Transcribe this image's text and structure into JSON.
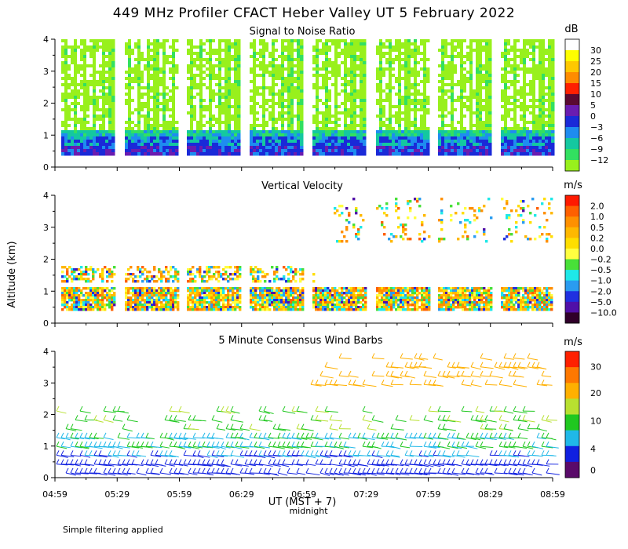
{
  "title": "449 MHz Profiler CFACT Heber Valley UT  5 February 2022",
  "ylabel": "Altitude (km)",
  "xlabel": "UT (MST + 7)",
  "midnight_label": "midnight",
  "footnote": "Simple filtering applied",
  "x_ticks": [
    "04:59",
    "05:29",
    "05:59",
    "06:29",
    "06:59",
    "07:29",
    "07:59",
    "08:29",
    "08:59"
  ],
  "chart_data": [
    {
      "type": "heatmap",
      "title": "Signal to Noise Ratio",
      "ylim": [
        0,
        4
      ],
      "y_ticks": [
        "0",
        "1",
        "2",
        "3",
        "4"
      ],
      "colorbar": {
        "unit": "dB",
        "labels": [
          "30",
          "25",
          "20",
          "15",
          "10",
          "5",
          "0",
          "−3",
          "−6",
          "−9",
          "−12"
        ],
        "colors": [
          "#ffffff",
          "#ffff00",
          "#ffc800",
          "#ff8c00",
          "#ff2000",
          "#5a0a32",
          "#6a1cb0",
          "#1a2ad8",
          "#1e8cf0",
          "#14c8a0",
          "#32e060",
          "#98f01c"
        ]
      }
    },
    {
      "type": "heatmap",
      "title": "Vertical Velocity",
      "ylim": [
        0,
        4
      ],
      "y_ticks": [
        "0",
        "1",
        "2",
        "3",
        "4"
      ],
      "colorbar": {
        "unit": "m/s",
        "labels": [
          "2.0",
          "1.0",
          "0.5",
          "0.2",
          "0.0",
          "−0.2",
          "−0.5",
          "−1.0",
          "−2.0",
          "−5.0",
          "−10.0"
        ],
        "colors": [
          "#ff1a00",
          "#ff6000",
          "#ff9000",
          "#ffb800",
          "#ffde00",
          "#ffff40",
          "#48e038",
          "#1ee8e8",
          "#2a9cf0",
          "#2030e0",
          "#5010a8",
          "#30002a"
        ]
      }
    },
    {
      "type": "scatter",
      "title": "5 Minute Consensus Wind Barbs",
      "ylim": [
        0,
        4
      ],
      "y_ticks": [
        "0",
        "1",
        "2",
        "3",
        "4"
      ],
      "colorbar": {
        "unit": "m/s",
        "labels": [
          "30",
          "20",
          "10",
          "4",
          "0"
        ],
        "colors": [
          "#ff2000",
          "#ff7800",
          "#ffb000",
          "#b8e030",
          "#20c820",
          "#20b8e8",
          "#1020e0",
          "#5a0a6a"
        ]
      }
    }
  ]
}
